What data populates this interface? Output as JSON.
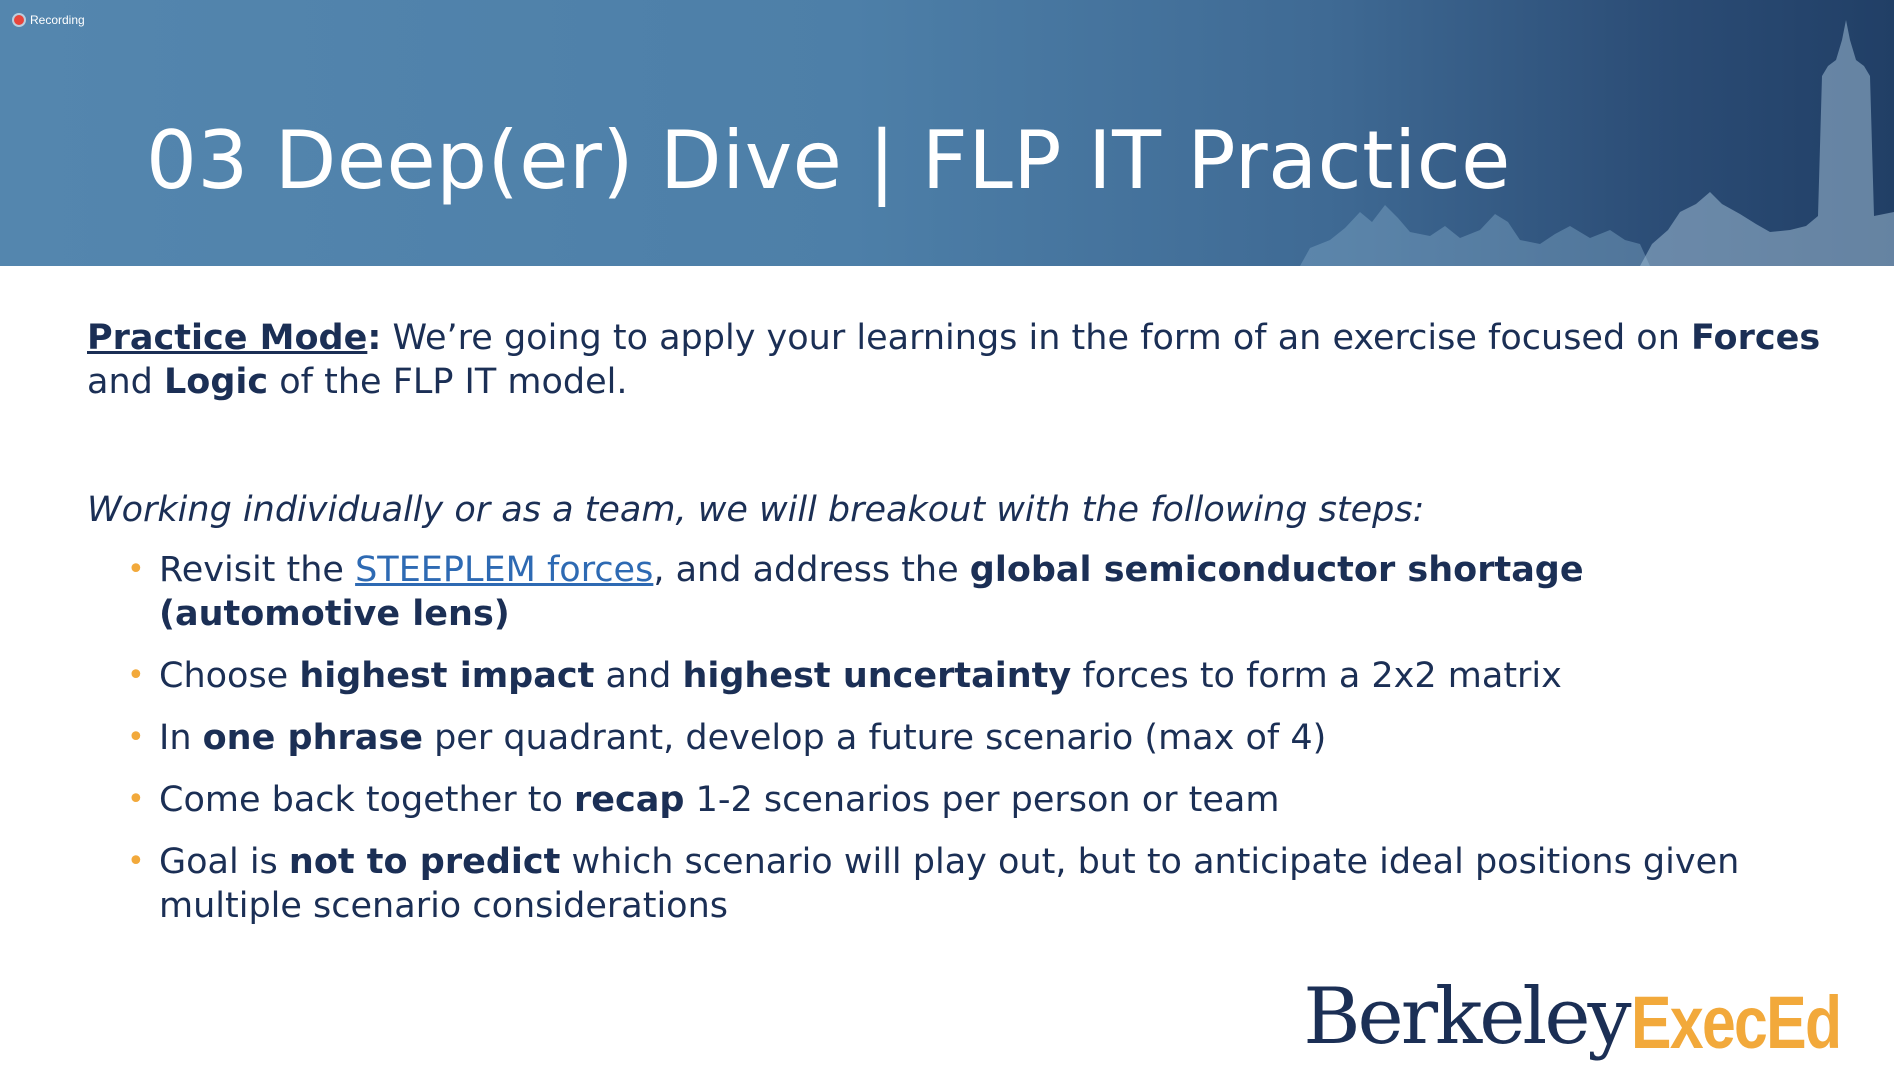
{
  "recording": {
    "label": "Recording"
  },
  "slide": {
    "title": "03 Deep(er) Dive | FLP IT Practice",
    "intro": {
      "label": "Practice Mode",
      "colon": ":",
      "text1": " We’re going to apply your learnings in the form of an exercise focused on ",
      "bold1": "Forces",
      "text2": " and ",
      "bold2": "Logic",
      "text3": " of the FLP IT model."
    },
    "lead": "Working individually or as a team, we will breakout with the following steps:",
    "steps": [
      {
        "t1": "Revisit the ",
        "link": "STEEPLEM forces",
        "t2": ", and address the ",
        "b1": "global semiconductor shortage (automotive lens)"
      },
      {
        "t1": "Choose ",
        "b1": "highest impact",
        "t2": " and ",
        "b2": "highest uncertainty",
        "t3": " forces to form a 2x2 matrix"
      },
      {
        "t1": "In ",
        "b1": "one phrase",
        "t2": " per quadrant, develop a future scenario (max of 4)"
      },
      {
        "t1": "Come back together to ",
        "b1": "recap",
        "t2": " 1-2 scenarios per person or team"
      },
      {
        "t1": "Goal is ",
        "b1": "not to predict",
        "t2": " which scenario will play out, but to anticipate ideal positions given multiple scenario considerations"
      }
    ]
  },
  "logo": {
    "part1": "Berkeley",
    "part2": "ExecEd"
  },
  "colors": {
    "banner": "#4d7fa8",
    "text": "#1b2f55",
    "accent": "#f2a93b",
    "link": "#2e6ab3"
  }
}
